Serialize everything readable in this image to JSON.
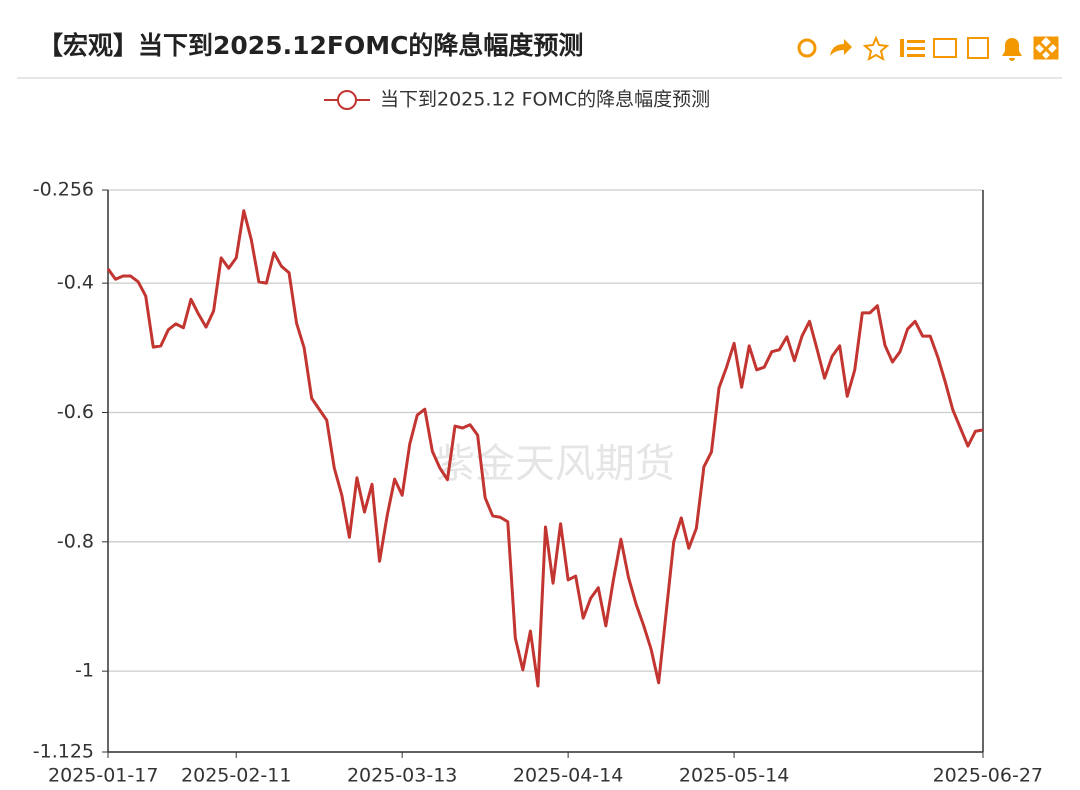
{
  "header": {
    "title": "【宏观】当下到2025.12FOMC的降息幅度预测"
  },
  "chart_data": {
    "type": "line",
    "watermark": "紫金天风期货",
    "categories": [
      "2025-01-17",
      null,
      null,
      null,
      null,
      null,
      null,
      null,
      null,
      null,
      null,
      null,
      null,
      null,
      null,
      null,
      null,
      "2025-02-11",
      null,
      null,
      null,
      null,
      null,
      null,
      null,
      null,
      null,
      null,
      null,
      null,
      null,
      null,
      null,
      null,
      null,
      null,
      null,
      null,
      null,
      "2025-03-13",
      null,
      null,
      null,
      null,
      null,
      null,
      null,
      null,
      null,
      null,
      null,
      null,
      null,
      null,
      null,
      null,
      null,
      null,
      null,
      null,
      null,
      "2025-04-14",
      null,
      null,
      null,
      null,
      null,
      null,
      null,
      null,
      null,
      null,
      null,
      null,
      null,
      null,
      null,
      null,
      null,
      null,
      null,
      null,
      null,
      "2025-05-14",
      null,
      null,
      null,
      null,
      null,
      null,
      null,
      null,
      null,
      null,
      null,
      null,
      null,
      null,
      null,
      null,
      null,
      null,
      null,
      null,
      null,
      null,
      null,
      null,
      null,
      null,
      null,
      null,
      null,
      null,
      null,
      null,
      "2025-06-27"
    ],
    "series": [
      {
        "name": "当下到2025.12 FOMC的降息幅度预测",
        "color": "#c23531",
        "values": [
          -0.378,
          -0.394,
          -0.389,
          -0.389,
          -0.398,
          -0.42,
          -0.499,
          -0.497,
          -0.472,
          -0.463,
          -0.469,
          -0.425,
          -0.448,
          -0.468,
          -0.443,
          -0.361,
          -0.377,
          -0.361,
          -0.288,
          -0.333,
          -0.398,
          -0.4,
          -0.353,
          -0.374,
          -0.384,
          -0.462,
          -0.5,
          -0.578,
          -0.595,
          -0.612,
          -0.686,
          -0.728,
          -0.793,
          -0.701,
          -0.754,
          -0.711,
          -0.83,
          -0.76,
          -0.703,
          -0.728,
          -0.649,
          -0.604,
          -0.595,
          -0.66,
          -0.686,
          -0.704,
          -0.621,
          -0.624,
          -0.619,
          -0.635,
          -0.732,
          -0.76,
          -0.762,
          -0.769,
          -0.949,
          -0.998,
          -0.938,
          -1.023,
          -0.777,
          -0.864,
          -0.772,
          -0.859,
          -0.853,
          -0.918,
          -0.887,
          -0.871,
          -0.93,
          -0.859,
          -0.796,
          -0.855,
          -0.896,
          -0.929,
          -0.966,
          -1.018,
          -0.909,
          -0.8,
          -0.763,
          -0.81,
          -0.779,
          -0.684,
          -0.661,
          -0.562,
          -0.53,
          -0.493,
          -0.561,
          -0.497,
          -0.534,
          -0.53,
          -0.506,
          -0.503,
          -0.483,
          -0.52,
          -0.482,
          -0.459,
          -0.502,
          -0.547,
          -0.513,
          -0.497,
          -0.575,
          -0.534,
          -0.446,
          -0.446,
          -0.435,
          -0.496,
          -0.522,
          -0.506,
          -0.471,
          -0.459,
          -0.482,
          -0.482,
          -0.514,
          -0.553,
          -0.596,
          -0.624,
          -0.652,
          -0.629,
          -0.627
        ]
      }
    ],
    "ylim": [
      -1.125,
      -0.256
    ],
    "yticks": [
      -1.125,
      -1,
      -0.8,
      -0.6,
      -0.4,
      -0.256
    ],
    "grid": true,
    "legend": "top"
  }
}
